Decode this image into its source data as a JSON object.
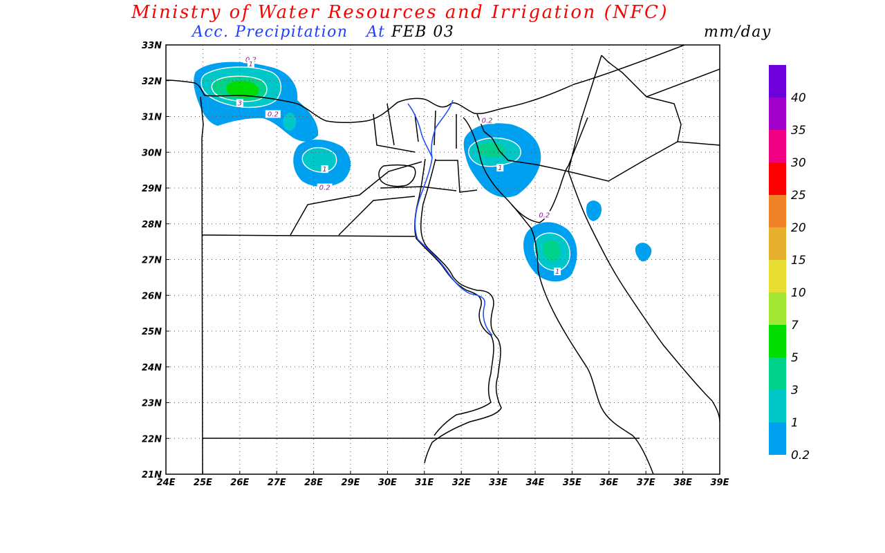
{
  "title": "Ministry of Water Resources and Irrigation (NFC)",
  "subtitle": {
    "product": "Acc. Precipitation",
    "at": "At",
    "date": "FEB 03",
    "units": "mm/day"
  },
  "axes": {
    "lon_labels": [
      "24E",
      "25E",
      "26E",
      "27E",
      "28E",
      "29E",
      "30E",
      "31E",
      "32E",
      "33E",
      "34E",
      "35E",
      "36E",
      "37E",
      "38E",
      "39E"
    ],
    "lat_labels": [
      "33N",
      "32N",
      "31N",
      "30N",
      "29N",
      "28N",
      "27N",
      "26N",
      "25N",
      "24N",
      "23N",
      "22N",
      "21N"
    ],
    "lon_range": [
      24,
      39
    ],
    "lat_range": [
      21,
      33
    ],
    "grid": "dotted"
  },
  "colorbar": {
    "levels": [
      {
        "label": "0.2",
        "color": "#00a0f0"
      },
      {
        "label": "1",
        "color": "#00c8c8"
      },
      {
        "label": "3",
        "color": "#00d28c"
      },
      {
        "label": "5",
        "color": "#00dc00"
      },
      {
        "label": "7",
        "color": "#a0e632"
      },
      {
        "label": "10",
        "color": "#e6dc32"
      },
      {
        "label": "15",
        "color": "#e6af2d"
      },
      {
        "label": "20",
        "color": "#f08228"
      },
      {
        "label": "25",
        "color": "#fa0000"
      },
      {
        "label": "30",
        "color": "#f00082"
      },
      {
        "label": "35",
        "color": "#a000c8"
      },
      {
        "label": "40",
        "color": "#6e00dc"
      }
    ]
  },
  "contour_labels": [
    {
      "text": "0.2",
      "lon": 26.3,
      "lat": 32.55
    },
    {
      "text": "1",
      "lon": 26.3,
      "lat": 32.42
    },
    {
      "text": "3",
      "lon": 26.0,
      "lat": 31.33
    },
    {
      "text": "0.2",
      "lon": 26.9,
      "lat": 31.02
    },
    {
      "text": "1",
      "lon": 28.3,
      "lat": 29.48
    },
    {
      "text": "0.2",
      "lon": 28.3,
      "lat": 28.97
    },
    {
      "text": "0.2",
      "lon": 32.7,
      "lat": 30.85
    },
    {
      "text": "1",
      "lon": 33.05,
      "lat": 29.52
    },
    {
      "text": "0.2",
      "lon": 34.25,
      "lat": 28.2
    },
    {
      "text": "1",
      "lon": 34.6,
      "lat": 26.62
    }
  ]
}
